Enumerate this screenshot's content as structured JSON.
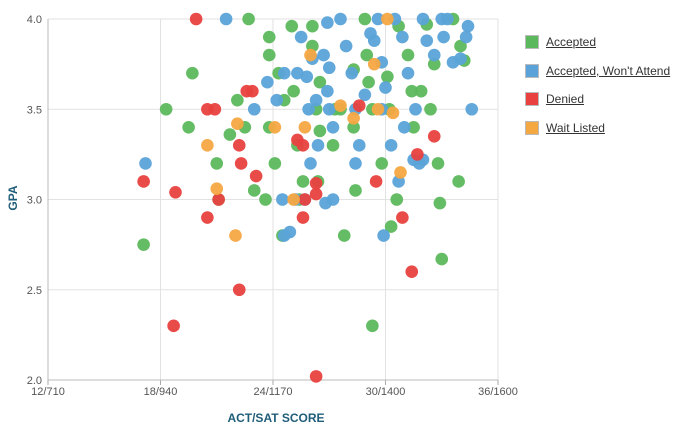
{
  "chart_data": {
    "type": "scatter",
    "title": "",
    "xlabel": "ACT/SAT SCORE",
    "ylabel": "GPA",
    "x_ticks": [
      "12/710",
      "18/940",
      "24/1170",
      "30/1400",
      "36/1600"
    ],
    "x_tick_act_values": [
      12,
      18,
      24,
      30,
      36
    ],
    "xlim_act": [
      12,
      36
    ],
    "y_ticks": [
      "2.0",
      "2.5",
      "3.0",
      "3.5",
      "4.0"
    ],
    "y_tick_values": [
      2.0,
      2.5,
      3.0,
      3.5,
      4.0
    ],
    "ylim": [
      2.0,
      4.0
    ],
    "grid": true,
    "legend_position": "right",
    "series": [
      {
        "name": "Accepted",
        "color": "#5cb85c",
        "points": [
          [
            18.3,
            3.5
          ],
          [
            19.7,
            3.7
          ],
          [
            19.5,
            3.4
          ],
          [
            21,
            3.2
          ],
          [
            21.7,
            3.36
          ],
          [
            21.1,
            3.0
          ],
          [
            22.1,
            3.55
          ],
          [
            22.7,
            4.0
          ],
          [
            22.5,
            3.4
          ],
          [
            23,
            3.05
          ],
          [
            23.8,
            3.9
          ],
          [
            23.8,
            3.8
          ],
          [
            24.3,
            3.7
          ],
          [
            23.8,
            3.4
          ],
          [
            24.6,
            3.55
          ],
          [
            25,
            3.96
          ],
          [
            25.1,
            3.6
          ],
          [
            25.3,
            3.3
          ],
          [
            25.6,
            3.1
          ],
          [
            25.4,
            3.0
          ],
          [
            26.1,
            3.96
          ],
          [
            26.1,
            3.85
          ],
          [
            26.3,
            3.5
          ],
          [
            26.5,
            3.65
          ],
          [
            26.5,
            3.38
          ],
          [
            26.4,
            3.1
          ],
          [
            27.3,
            3.5
          ],
          [
            27.6,
            3.5
          ],
          [
            27.2,
            3.3
          ],
          [
            27.8,
            2.8
          ],
          [
            28.3,
            3.72
          ],
          [
            28.3,
            3.4
          ],
          [
            28.4,
            3.05
          ],
          [
            28.9,
            4.0
          ],
          [
            29,
            3.8
          ],
          [
            29.1,
            3.65
          ],
          [
            29.3,
            3.5
          ],
          [
            29.8,
            3.2
          ],
          [
            29.3,
            2.3
          ],
          [
            17.1,
            2.75
          ],
          [
            30.1,
            3.68
          ],
          [
            30.2,
            3.5
          ],
          [
            30.7,
            3.96
          ],
          [
            31.2,
            3.8
          ],
          [
            31.4,
            3.6
          ],
          [
            31.5,
            3.4
          ],
          [
            30.6,
            3.0
          ],
          [
            30.3,
            2.85
          ],
          [
            32.2,
            3.97
          ],
          [
            32.6,
            3.75
          ],
          [
            32.4,
            3.5
          ],
          [
            32.8,
            3.2
          ],
          [
            32.9,
            2.98
          ],
          [
            33,
            2.67
          ],
          [
            33.6,
            4.0
          ],
          [
            34,
            3.85
          ],
          [
            34.2,
            3.77
          ],
          [
            33.9,
            3.1
          ],
          [
            24.5,
            2.8
          ],
          [
            24.1,
            3.2
          ],
          [
            23.6,
            3.0
          ],
          [
            31.9,
            3.6
          ]
        ]
      },
      {
        "name": "Accepted, Won't Attend",
        "color": "#5aa3d8",
        "points": [
          [
            17.2,
            3.2
          ],
          [
            21.5,
            4.0
          ],
          [
            23,
            3.5
          ],
          [
            23.7,
            3.65
          ],
          [
            24.2,
            3.55
          ],
          [
            24.6,
            3.7
          ],
          [
            25.3,
            3.7
          ],
          [
            25.5,
            3.9
          ],
          [
            25.8,
            3.68
          ],
          [
            25.9,
            3.5
          ],
          [
            26.1,
            3.78
          ],
          [
            26.3,
            3.55
          ],
          [
            26.4,
            3.3
          ],
          [
            26,
            3.2
          ],
          [
            25.7,
            3.0
          ],
          [
            25.2,
            3.0
          ],
          [
            24.9,
            2.82
          ],
          [
            24.6,
            2.8
          ],
          [
            24.5,
            3.0
          ],
          [
            26.9,
            3.98
          ],
          [
            26.7,
            3.8
          ],
          [
            27.0,
            3.73
          ],
          [
            26.9,
            3.6
          ],
          [
            27,
            3.5
          ],
          [
            27.2,
            3.4
          ],
          [
            27.2,
            3.0
          ],
          [
            26.8,
            2.98
          ],
          [
            27.6,
            4.0
          ],
          [
            27.9,
            3.85
          ],
          [
            28.2,
            3.7
          ],
          [
            28.4,
            3.5
          ],
          [
            28.6,
            3.3
          ],
          [
            28.4,
            3.2
          ],
          [
            28.9,
            3.58
          ],
          [
            29.6,
            4.0
          ],
          [
            29.4,
            3.88
          ],
          [
            29.8,
            3.76
          ],
          [
            30.0,
            3.62
          ],
          [
            29.8,
            3.5
          ],
          [
            30.3,
            3.3
          ],
          [
            30.7,
            3.1
          ],
          [
            29.9,
            2.8
          ],
          [
            30.5,
            4.0
          ],
          [
            30.9,
            3.9
          ],
          [
            31.2,
            3.7
          ],
          [
            31.6,
            3.5
          ],
          [
            31.8,
            3.2
          ],
          [
            32.0,
            4.0
          ],
          [
            32.2,
            3.88
          ],
          [
            32.6,
            3.8
          ],
          [
            33.1,
            3.9
          ],
          [
            33.3,
            4.0
          ],
          [
            34.4,
            3.96
          ],
          [
            34.0,
            3.78
          ],
          [
            34.6,
            3.5
          ],
          [
            31.5,
            3.22
          ],
          [
            32.0,
            3.22
          ],
          [
            34.3,
            3.9
          ],
          [
            31.0,
            3.4
          ],
          [
            29.2,
            3.92
          ],
          [
            33.6,
            3.76
          ],
          [
            33.0,
            4.0
          ]
        ]
      },
      {
        "name": "Denied",
        "color": "#e8413f",
        "points": [
          [
            19.9,
            4.0
          ],
          [
            17.1,
            3.1
          ],
          [
            18.8,
            3.04
          ],
          [
            20.5,
            3.5
          ],
          [
            20.9,
            3.5
          ],
          [
            20.5,
            2.9
          ],
          [
            21.1,
            3.0
          ],
          [
            22.6,
            3.6
          ],
          [
            22.2,
            3.3
          ],
          [
            22.3,
            3.2
          ],
          [
            23.1,
            3.13
          ],
          [
            22.9,
            3.6
          ],
          [
            22.2,
            2.5
          ],
          [
            18.7,
            2.3
          ],
          [
            25.3,
            3.33
          ],
          [
            25.6,
            3.3
          ],
          [
            25.7,
            3.0
          ],
          [
            25.6,
            2.9
          ],
          [
            26.3,
            3.09
          ],
          [
            26.3,
            3.03
          ],
          [
            26.3,
            2.02
          ],
          [
            28.6,
            3.52
          ],
          [
            29.5,
            3.1
          ],
          [
            30.9,
            2.9
          ],
          [
            31.4,
            2.6
          ],
          [
            31.7,
            3.25
          ],
          [
            32.6,
            3.35
          ]
        ]
      },
      {
        "name": "Wait Listed",
        "color": "#f5a742",
        "points": [
          [
            20.5,
            3.3
          ],
          [
            21.0,
            3.06
          ],
          [
            22.1,
            3.42
          ],
          [
            22.0,
            2.8
          ],
          [
            24.1,
            3.4
          ],
          [
            25.1,
            3.0
          ],
          [
            25.7,
            3.4
          ],
          [
            26.0,
            3.8
          ],
          [
            27.6,
            3.52
          ],
          [
            28.3,
            3.45
          ],
          [
            29.4,
            3.75
          ],
          [
            30.1,
            4.0
          ],
          [
            30.8,
            3.15
          ],
          [
            30.4,
            3.48
          ],
          [
            29.6,
            3.5
          ]
        ]
      }
    ]
  }
}
